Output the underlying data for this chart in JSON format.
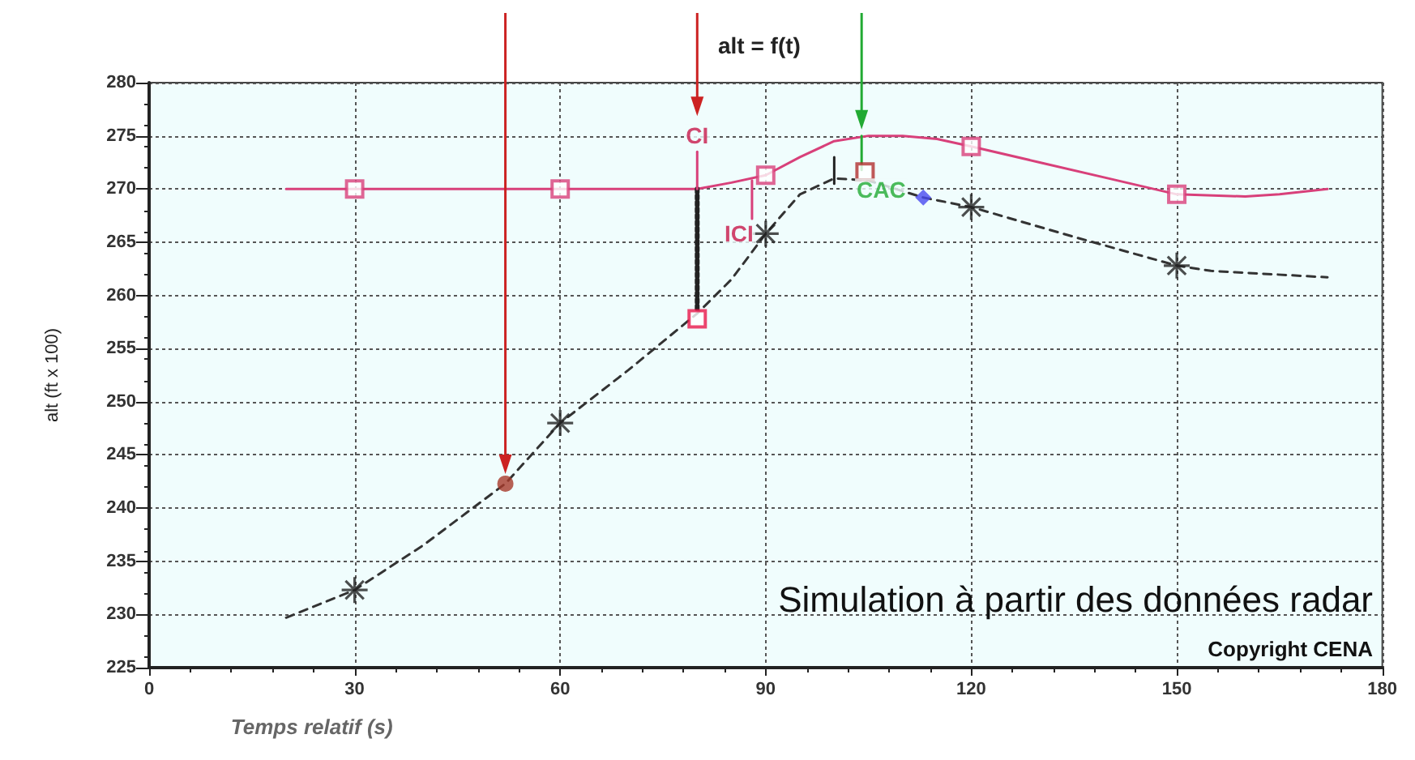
{
  "chart_data": {
    "type": "line",
    "title": "alt = f(t)",
    "xlabel": "Temps relatif (s)",
    "ylabel": "alt (ft x 100)",
    "xlim": [
      0,
      180
    ],
    "xticks": [
      0,
      30,
      60,
      90,
      120,
      150,
      180
    ],
    "ylim": [
      225,
      280
    ],
    "yticks": [
      225,
      230,
      235,
      240,
      245,
      250,
      255,
      260,
      265,
      270,
      275,
      280
    ],
    "grid": true,
    "series": [
      {
        "color": "#d8407a",
        "marker": "none",
        "line_style": "solid",
        "x": [
          20,
          30,
          60,
          80,
          85,
          90,
          95,
          100,
          105,
          110,
          115,
          120,
          130,
          140,
          150,
          160,
          165,
          172
        ],
        "values": [
          270,
          270,
          270,
          270,
          270.6,
          271.3,
          273,
          274.5,
          275,
          275,
          274.7,
          274,
          272.5,
          271,
          269.5,
          269.3,
          269.5,
          270
        ]
      },
      {
        "type": "scatter",
        "color": "#d8407a",
        "marker": "square",
        "x": [
          30,
          60,
          90,
          120,
          150
        ],
        "values": [
          270,
          270,
          271.3,
          274,
          269.5
        ]
      },
      {
        "color": "#333333",
        "marker": "none",
        "line_style": "dashed",
        "x": [
          20,
          30,
          40,
          52,
          60,
          70,
          80,
          85,
          90,
          95,
          100,
          105,
          113,
          120,
          135,
          150,
          155,
          172
        ],
        "values": [
          229.7,
          232.3,
          236.5,
          242.3,
          248,
          253,
          258.3,
          261.5,
          265.8,
          269.5,
          271,
          270.8,
          269.2,
          268.3,
          265.5,
          262.8,
          262.3,
          261.7
        ]
      },
      {
        "type": "scatter",
        "color": "#222222",
        "marker": "cross",
        "x": [
          30,
          60,
          90,
          120,
          150
        ],
        "values": [
          232.3,
          248,
          265.8,
          268.3,
          262.8
        ]
      },
      {
        "type": "scatter",
        "color": "#a83a2a",
        "marker": "circle",
        "x": [
          52
        ],
        "values": [
          242.3
        ]
      },
      {
        "type": "scatter",
        "color": "#e8174a",
        "marker": "square",
        "x": [
          80
        ],
        "values": [
          257.8
        ]
      },
      {
        "type": "scatter",
        "color": "#b03030",
        "marker": "square",
        "x": [
          104.5
        ],
        "values": [
          271.6
        ]
      },
      {
        "type": "scatter",
        "color": "#4a4af0",
        "marker": "diamond",
        "x": [
          113
        ],
        "values": [
          269.2
        ]
      },
      {
        "color": "#222222",
        "marker": "none",
        "line_style": "dotted",
        "x": [
          80,
          80
        ],
        "values": [
          270,
          258.5
        ]
      },
      {
        "color": "#222222",
        "marker": "none",
        "line_style": "solid",
        "x": [
          100,
          100
        ],
        "values": [
          270.5,
          273
        ]
      },
      {
        "color": "#d8407a",
        "marker": "none",
        "line_style": "solid",
        "x": [
          80,
          80
        ],
        "values": [
          270,
          273.5
        ]
      },
      {
        "color": "#d8407a",
        "marker": "none",
        "line_style": "solid",
        "x": [
          88,
          88
        ],
        "values": [
          270.8,
          267.2
        ]
      },
      {
        "color": "#22aa33",
        "marker": "none",
        "line_style": "solid",
        "x": [
          104,
          104
        ],
        "values": [
          275,
          271.8
        ]
      }
    ],
    "annotations": [
      {
        "text": "CI",
        "x": 80,
        "y": 273.5
      },
      {
        "text": "ICI",
        "x": 88,
        "y": 267.2
      },
      {
        "text": "CAC",
        "x": 104.5,
        "y": 271.6
      },
      "Simulation à partir des données radar",
      "Copyright CENA"
    ]
  }
}
